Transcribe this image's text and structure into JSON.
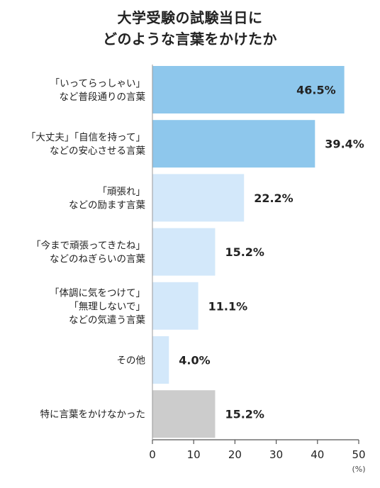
{
  "title": [
    "大学受験の試験当日に",
    "どのような言葉をかけたか"
  ],
  "chart_data": {
    "type": "bar",
    "orientation": "horizontal",
    "categories": [
      [
        "「いってらっしゃい」",
        "など普段通りの言葉"
      ],
      [
        "「大丈夫」「自信を持って」",
        "などの安心させる言葉"
      ],
      [
        "「頑張れ」",
        "などの励ます言葉"
      ],
      [
        "「今まで頑張ってきたね」",
        "などのねぎらいの言葉"
      ],
      [
        "「体調に気をつけて」",
        "「無理しないで」",
        "などの気遣う言葉"
      ],
      [
        "その他"
      ],
      [
        "特に言葉をかけなかった"
      ]
    ],
    "values": [
      46.5,
      39.4,
      22.2,
      15.2,
      11.1,
      4.0,
      15.2
    ],
    "value_labels": [
      "46.5%",
      "39.4%",
      "22.2%",
      "15.2%",
      "11.1%",
      "4.0%",
      "15.2%"
    ],
    "bar_colors": [
      "#8ec7ec",
      "#8ec7ec",
      "#d3e8fa",
      "#d3e8fa",
      "#d3e8fa",
      "#d3e8fa",
      "#cccccc"
    ],
    "xlim": [
      0,
      50
    ],
    "xticks": [
      0,
      10,
      20,
      30,
      40,
      50
    ],
    "xunit": "(%)",
    "grid": false
  }
}
